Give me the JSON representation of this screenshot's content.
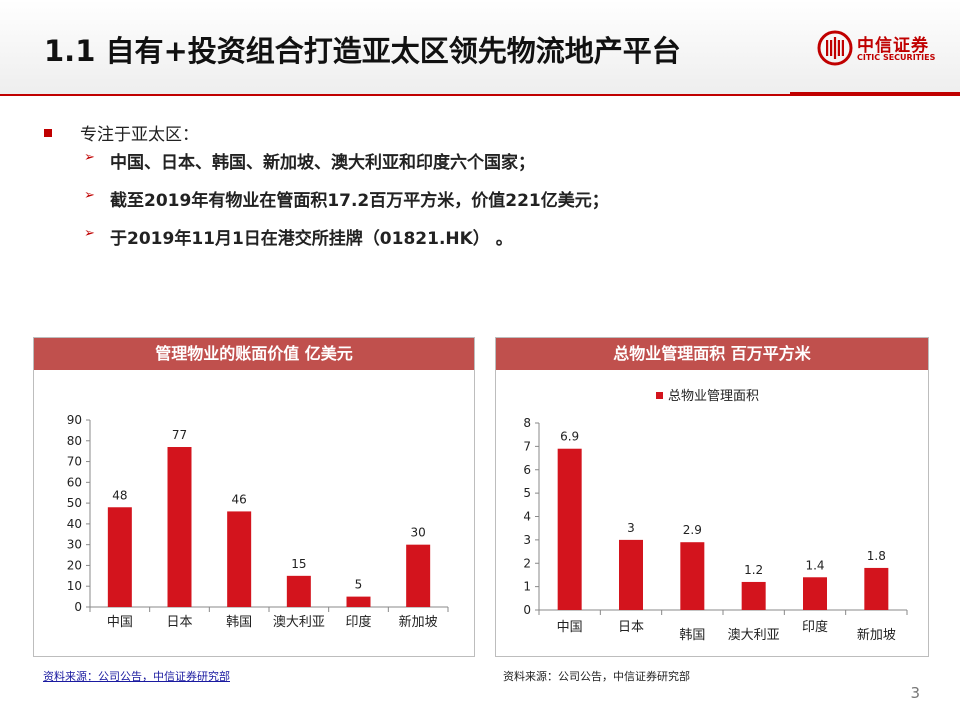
{
  "title": "1.1 自有+投资组合打造亚太区领先物流地产平台",
  "logo": {
    "cn": "中信证券",
    "en": "CITIC SECURITIES"
  },
  "bullets": {
    "main": "专注于亚太区：",
    "subs": [
      "中国、日本、韩国、新加坡、澳大利亚和印度六个国家；",
      "截至2019年有物业在管面积17.2百万平方米，价值221亿美元；",
      "于2019年11月1日在港交所挂牌（01821.HK）  。"
    ]
  },
  "chart_data": [
    {
      "type": "bar",
      "title": "管理物业的账面价值 亿美元",
      "categories": [
        "中国",
        "日本",
        "韩国",
        "澳大利亚",
        "印度",
        "新加坡"
      ],
      "values": [
        48,
        77,
        46,
        15,
        5,
        30
      ],
      "value_labels": [
        "48",
        "77",
        "46",
        "15",
        "5",
        "30"
      ],
      "ylim": [
        0,
        90
      ],
      "yticks": [
        "0",
        "10",
        "20",
        "30",
        "40",
        "50",
        "60",
        "70",
        "80",
        "90"
      ],
      "grid": false,
      "color": "#d3141d",
      "source": "资料来源：公司公告，中信证券研究部"
    },
    {
      "type": "bar",
      "title": "总物业管理面积  百万平方米",
      "categories": [
        "中国",
        "日本",
        "韩国",
        "澳大利亚",
        "印度",
        "新加坡"
      ],
      "values": [
        6.9,
        3,
        2.9,
        1.2,
        1.4,
        1.8
      ],
      "value_labels": [
        "6.9",
        "3",
        "2.9",
        "1.2",
        "1.4",
        "1.8"
      ],
      "ylim": [
        0,
        8
      ],
      "yticks": [
        "0",
        "1",
        "2",
        "3",
        "4",
        "5",
        "6",
        "7",
        "8"
      ],
      "grid": false,
      "legend": {
        "position": "top",
        "label": "总物业管理面积"
      },
      "color": "#d3141d",
      "source": "资料来源：公司公告，中信证券研究部"
    }
  ],
  "page_number": "3"
}
